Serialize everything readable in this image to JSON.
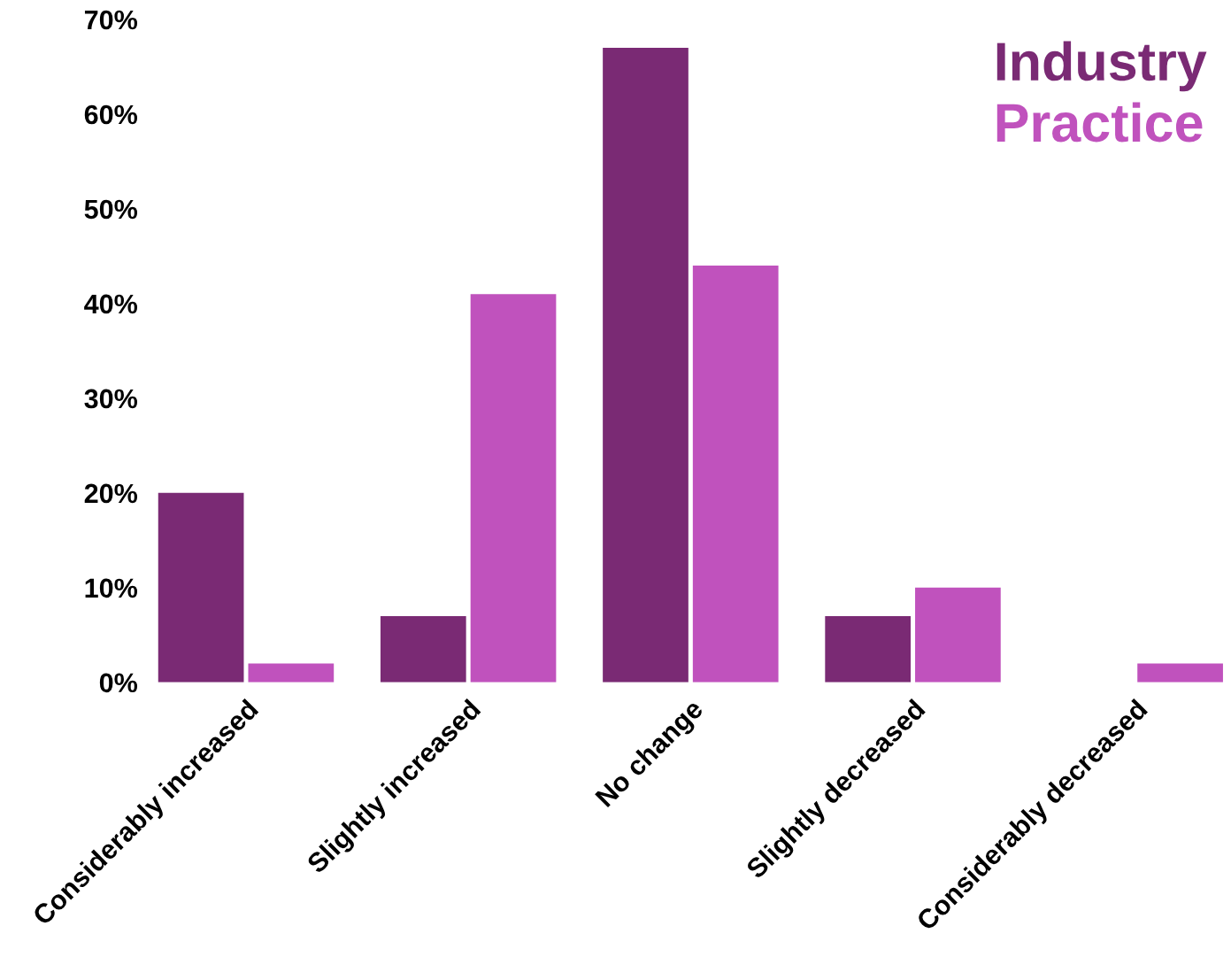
{
  "chart_data": {
    "type": "bar",
    "categories": [
      "Considerably increased",
      "Slightly increased",
      "No change",
      "Slightly decreased",
      "Considerably decreased"
    ],
    "series": [
      {
        "name": "Industry",
        "color": "#7a2a74",
        "values": [
          20,
          7,
          67,
          7,
          0
        ]
      },
      {
        "name": "Practice",
        "color": "#c052bd",
        "values": [
          2,
          41,
          44,
          10,
          2
        ]
      }
    ],
    "ylim": [
      0,
      70
    ],
    "yticks": [
      {
        "value": 0,
        "label": "0%"
      },
      {
        "value": 10,
        "label": "10%"
      },
      {
        "value": 20,
        "label": "20%"
      },
      {
        "value": 30,
        "label": "30%"
      },
      {
        "value": 40,
        "label": "40%"
      },
      {
        "value": 50,
        "label": "50%"
      },
      {
        "value": 60,
        "label": "60%"
      },
      {
        "value": 70,
        "label": "70%"
      }
    ],
    "grid": false,
    "legend": "top right"
  }
}
